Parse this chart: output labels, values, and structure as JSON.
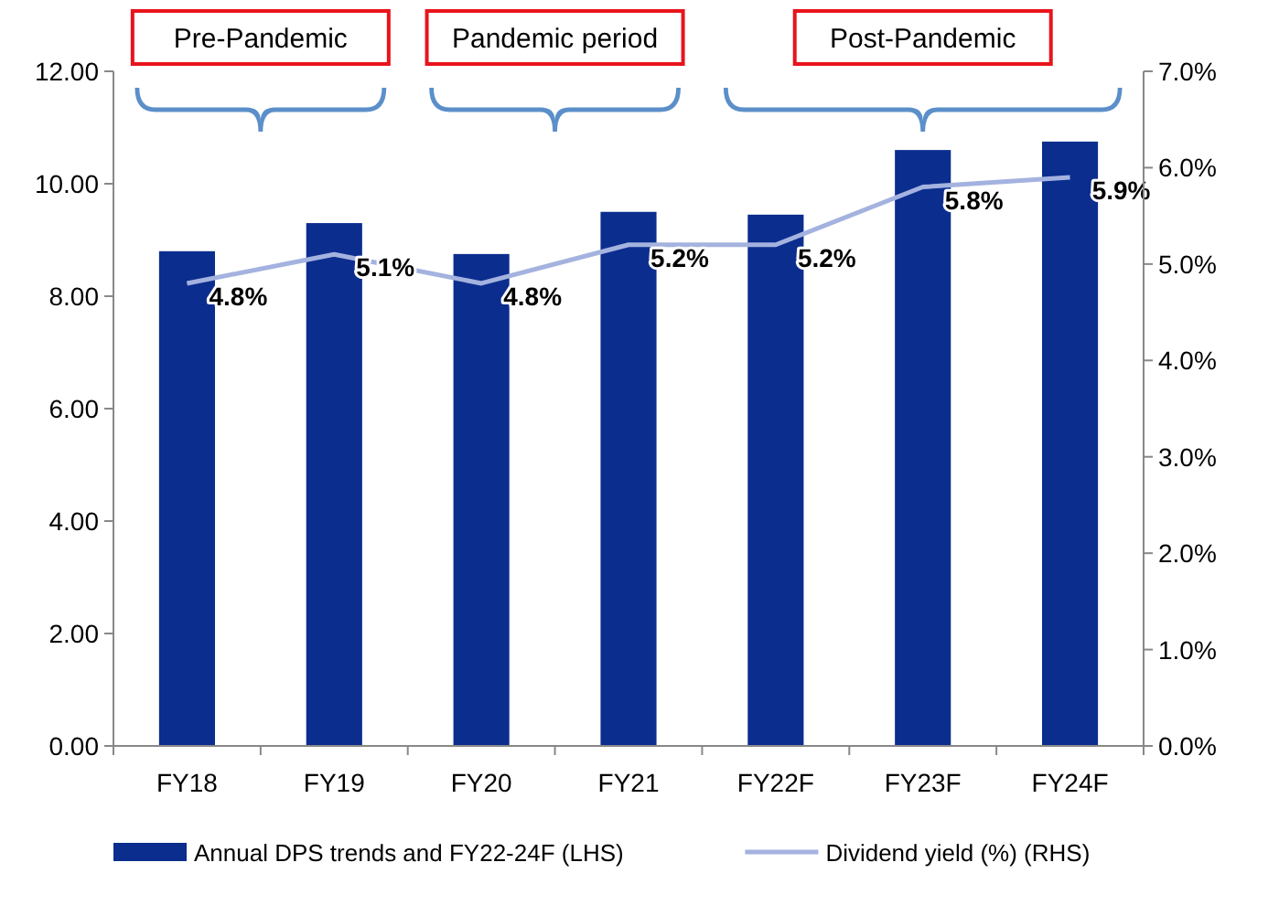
{
  "chart_data": {
    "type": "bar",
    "categories": [
      "FY18",
      "FY19",
      "FY20",
      "FY21",
      "FY22F",
      "FY23F",
      "FY24F"
    ],
    "series": [
      {
        "name": "Annual DPS trends and FY22-24F (LHS)",
        "color": "#0b2d8e",
        "values": [
          8.8,
          9.3,
          8.75,
          9.5,
          9.45,
          10.6,
          10.75
        ]
      },
      {
        "name": "Dividend yield (%) (RHS)",
        "type": "line",
        "axis": "y2",
        "color": "#a4b2df",
        "values": [
          4.8,
          5.1,
          4.8,
          5.2,
          5.2,
          5.8,
          5.9
        ],
        "value_labels": [
          "4.8%",
          "5.1%",
          "4.8%",
          "5.2%",
          "5.2%",
          "5.8%",
          "5.9%"
        ]
      }
    ],
    "ylim": [
      0,
      12
    ],
    "yticks": [
      {
        "value": 0,
        "label": "0.00"
      },
      {
        "value": 2,
        "label": "2.00"
      },
      {
        "value": 4,
        "label": "4.00"
      },
      {
        "value": 6,
        "label": "6.00"
      },
      {
        "value": 8,
        "label": "8.00"
      },
      {
        "value": 10,
        "label": "10.00"
      },
      {
        "value": 12,
        "label": "12.00"
      }
    ],
    "y2lim": [
      0,
      7
    ],
    "y2ticks": [
      {
        "value": 0,
        "label": "0.0%"
      },
      {
        "value": 1,
        "label": "1.0%"
      },
      {
        "value": 2,
        "label": "2.0%"
      },
      {
        "value": 3,
        "label": "3.0%"
      },
      {
        "value": 4,
        "label": "4.0%"
      },
      {
        "value": 5,
        "label": "5.0%"
      },
      {
        "value": 6,
        "label": "6.0%"
      },
      {
        "value": 7,
        "label": "7.0%"
      }
    ],
    "annotations": [
      "Pre-Pandemic",
      "Pandemic period",
      "Post-Pandemic"
    ],
    "legend": "bottom",
    "grid": false
  }
}
